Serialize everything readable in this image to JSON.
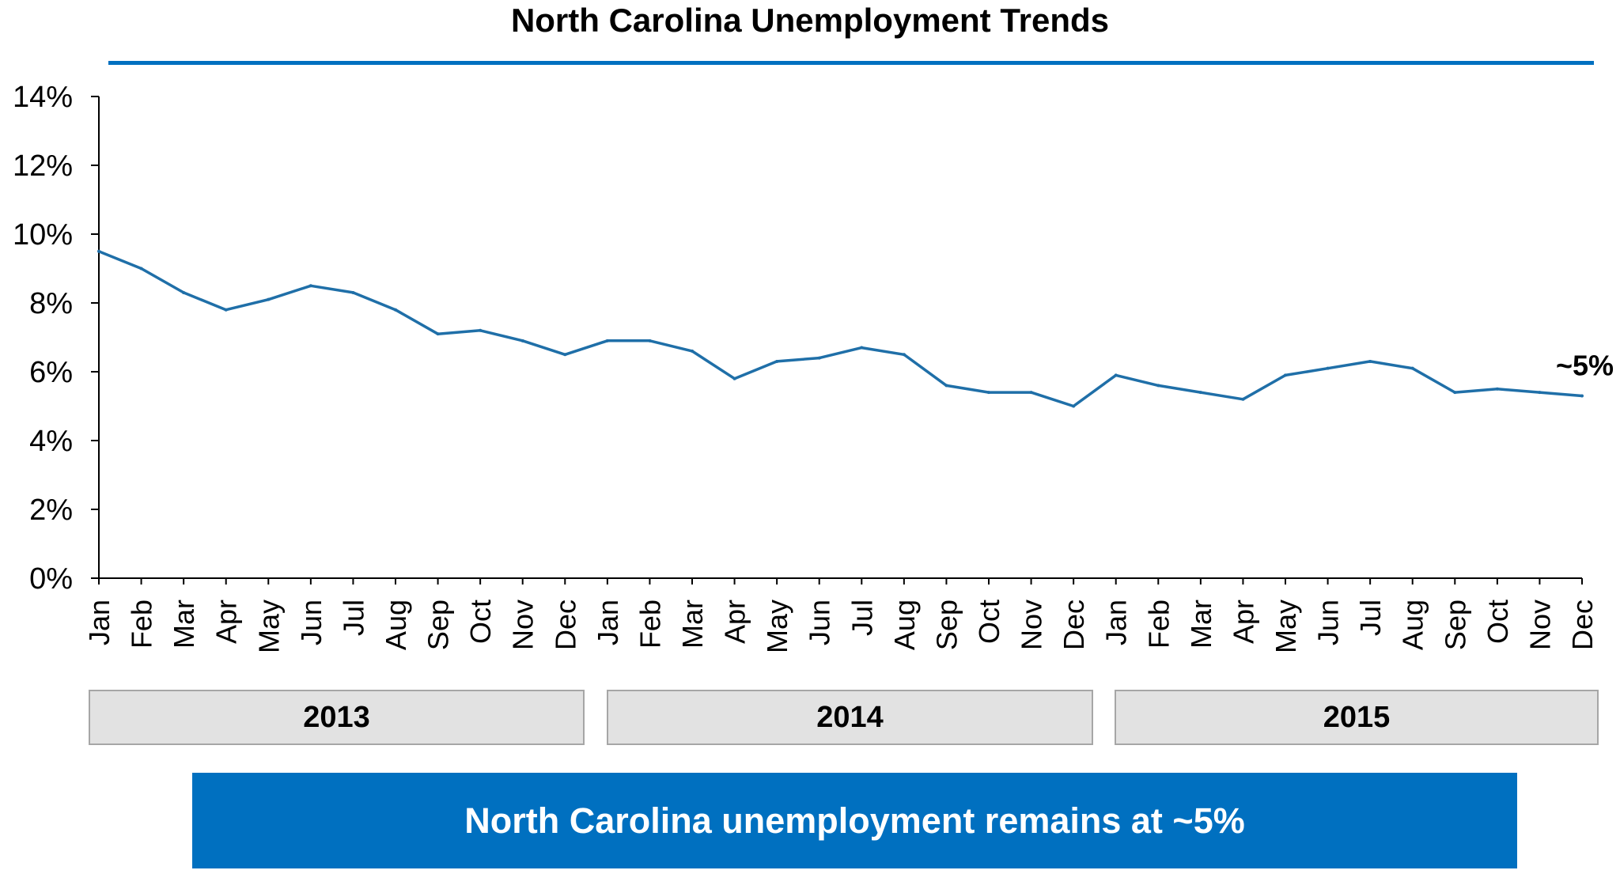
{
  "chart_data": {
    "type": "line",
    "title": "North Carolina Unemployment Trends",
    "x": [
      "Jan",
      "Feb",
      "Mar",
      "Apr",
      "May",
      "Jun",
      "Jul",
      "Aug",
      "Sep",
      "Oct",
      "Nov",
      "Dec",
      "Jan",
      "Feb",
      "Mar",
      "Apr",
      "May",
      "Jun",
      "Jul",
      "Aug",
      "Sep",
      "Oct",
      "Nov",
      "Dec",
      "Jan",
      "Feb",
      "Mar",
      "Apr",
      "May",
      "Jun",
      "Jul",
      "Aug",
      "Sep",
      "Oct",
      "Nov",
      "Dec"
    ],
    "years": [
      "2013",
      "2014",
      "2015"
    ],
    "series": [
      {
        "values": [
          9.5,
          9.0,
          8.3,
          7.8,
          8.1,
          8.5,
          8.3,
          7.8,
          7.1,
          7.2,
          6.9,
          6.5,
          6.9,
          6.9,
          6.6,
          5.8,
          6.3,
          6.4,
          6.7,
          6.5,
          5.6,
          5.4,
          5.4,
          5.0,
          5.9,
          5.6,
          5.4,
          5.2,
          5.9,
          6.1,
          6.3,
          6.1,
          5.4,
          5.5,
          5.4,
          5.3
        ],
        "color": "#1F6FA8"
      }
    ],
    "ylim": [
      0,
      14
    ],
    "yticks": [
      "0%",
      "2%",
      "4%",
      "6%",
      "8%",
      "10%",
      "12%",
      "14%"
    ],
    "end_label": "~5%",
    "xlabel": "",
    "ylabel": "",
    "grid": false
  },
  "callout": "North Carolina unemployment remains at ~5%",
  "colors": {
    "accent": "#0070C0",
    "year_box_fill": "#E2E2E2",
    "year_box_border": "#A6A6A6"
  }
}
